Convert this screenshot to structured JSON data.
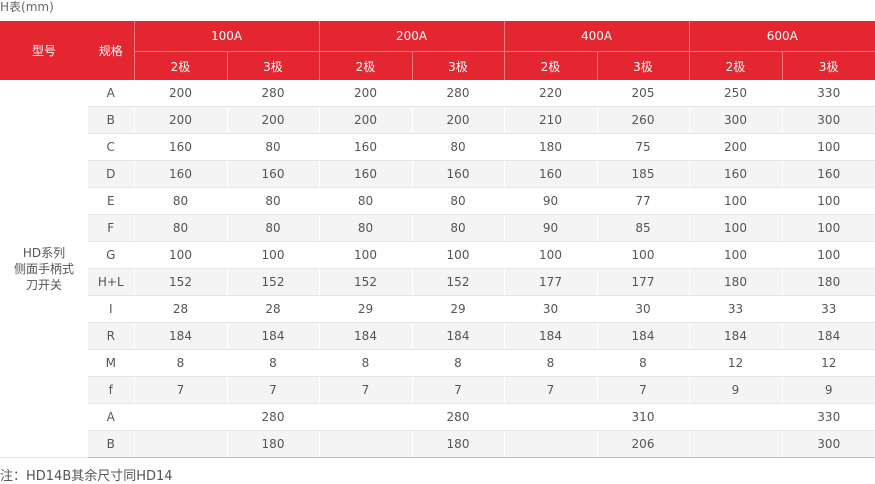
{
  "caption": "H表(mm)",
  "header": {
    "model_label": "型号",
    "spec_label": "规格",
    "groups": [
      "100A",
      "200A",
      "400A",
      "600A"
    ],
    "poles": [
      "2极",
      "3极",
      "2极",
      "3极",
      "2极",
      "3极",
      "2极",
      "3极"
    ]
  },
  "model_name": [
    "HD系列",
    "侧面手柄式",
    "刀开关"
  ],
  "rows": [
    {
      "spec": "A",
      "values": [
        "200",
        "280",
        "200",
        "280",
        "220",
        "205",
        "250",
        "330"
      ]
    },
    {
      "spec": "B",
      "values": [
        "200",
        "200",
        "200",
        "200",
        "210",
        "260",
        "300",
        "300"
      ]
    },
    {
      "spec": "C",
      "values": [
        "160",
        "80",
        "160",
        "80",
        "180",
        "75",
        "200",
        "100"
      ]
    },
    {
      "spec": "D",
      "values": [
        "160",
        "160",
        "160",
        "160",
        "160",
        "185",
        "160",
        "160"
      ]
    },
    {
      "spec": "E",
      "values": [
        "80",
        "80",
        "80",
        "80",
        "90",
        "77",
        "100",
        "100"
      ]
    },
    {
      "spec": "F",
      "values": [
        "80",
        "80",
        "80",
        "80",
        "90",
        "85",
        "100",
        "100"
      ]
    },
    {
      "spec": "G",
      "values": [
        "100",
        "100",
        "100",
        "100",
        "100",
        "100",
        "100",
        "100"
      ]
    },
    {
      "spec": "H+L",
      "values": [
        "152",
        "152",
        "152",
        "152",
        "177",
        "177",
        "180",
        "180"
      ]
    },
    {
      "spec": "I",
      "values": [
        "28",
        "28",
        "29",
        "29",
        "30",
        "30",
        "33",
        "33"
      ]
    },
    {
      "spec": "R",
      "values": [
        "184",
        "184",
        "184",
        "184",
        "184",
        "184",
        "184",
        "184"
      ]
    },
    {
      "spec": "M",
      "values": [
        "8",
        "8",
        "8",
        "8",
        "8",
        "8",
        "12",
        "12"
      ]
    },
    {
      "spec": "f",
      "values": [
        "7",
        "7",
        "7",
        "7",
        "7",
        "7",
        "9",
        "9"
      ]
    },
    {
      "spec": "A",
      "values": [
        "",
        "280",
        "",
        "280",
        "",
        "310",
        "",
        "330"
      ]
    },
    {
      "spec": "B",
      "values": [
        "",
        "180",
        "",
        "180",
        "",
        "206",
        "",
        "300"
      ]
    }
  ],
  "note": "注：HD14B其余尺寸同HD14"
}
